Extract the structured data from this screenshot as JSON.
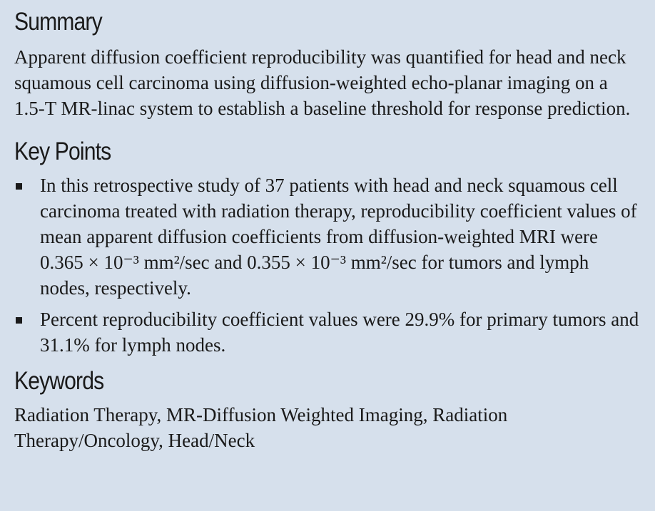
{
  "summary": {
    "heading": "Summary",
    "text": "Apparent diffusion coefficient reproducibility was quantified for head and neck squamous cell carcinoma using diffusion-weighted echo-planar imaging on a 1.5-T MR-linac system to establish a baseline threshold for response prediction."
  },
  "key_points": {
    "heading": "Key Points",
    "items": [
      "In this retrospective study of 37 patients with head and neck squamous cell carcinoma treated with radiation therapy, reproducibility coefficient values of mean apparent diffusion coefficients from diffusion-weighted MRI were 0.365 × 10⁻³ mm²/sec and 0.355 × 10⁻³ mm²/sec for tumors and lymph nodes, respectively.",
      "Percent reproducibility coefficient values were 29.9% for primary tumors and 31.1% for lymph nodes."
    ]
  },
  "keywords": {
    "heading": "Keywords",
    "text": "Radiation Therapy, MR-Diffusion Weighted Imaging, Radiation Therapy/Oncology, Head/Neck"
  },
  "colors": {
    "background": "#d6e0ec",
    "text": "#1a1a1a"
  }
}
